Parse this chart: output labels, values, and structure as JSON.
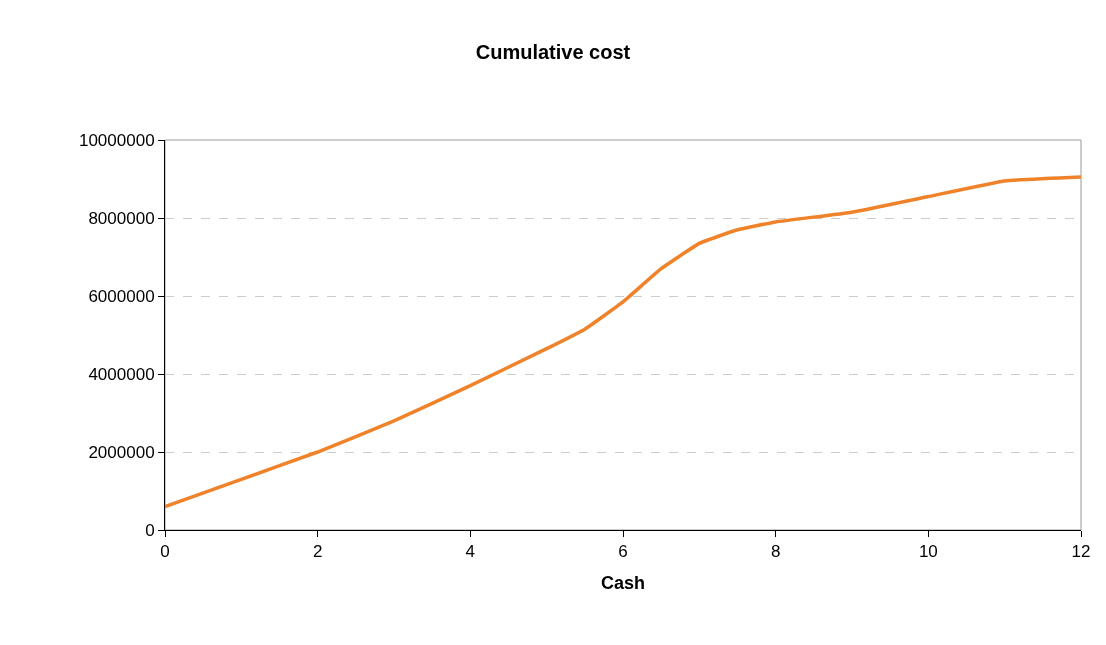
{
  "chart_data": {
    "type": "line",
    "title": "Cumulative cost",
    "xlabel": "Cash",
    "x": [
      0,
      1,
      2,
      3,
      4,
      5,
      5.5,
      6,
      6.5,
      7,
      7.5,
      8,
      9,
      10,
      11,
      12
    ],
    "series": [
      {
        "color": "#f0822a",
        "values": [
          600000,
          1300000,
          2000000,
          2800000,
          3700000,
          4650000,
          5150000,
          5850000,
          6700000,
          7350000,
          7700000,
          7900000,
          8150000,
          8550000,
          8950000,
          9050000
        ]
      }
    ],
    "xlim": [
      0,
      12
    ],
    "xticks": [
      0,
      2,
      4,
      6,
      8,
      10,
      12
    ],
    "ylim": [
      0,
      10000000
    ],
    "yticks": [
      0,
      2000000,
      4000000,
      6000000,
      8000000,
      10000000
    ],
    "grid": "y",
    "marker": "none",
    "line_style": "solid"
  }
}
